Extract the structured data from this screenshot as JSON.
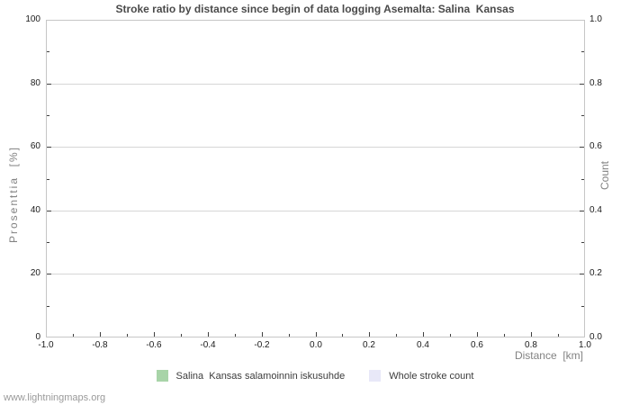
{
  "title": "Stroke ratio by distance since begin of data logging Asemalta: Salina  Kansas",
  "watermark": "www.lightningmaps.org",
  "colors": {
    "background": "#ffffff",
    "plot_border": "#c6c6c6",
    "grid": "#d6d6d6",
    "tick": "#404040",
    "tick_label": "#1a1a1a",
    "axis_title": "#828282",
    "title": "#4a4a4a",
    "legend_text": "#3c3c3c",
    "watermark": "#9a9a9a"
  },
  "chart_data": {
    "type": "bar",
    "title": "Stroke ratio by distance since begin of data logging Asemalta: Salina  Kansas",
    "grid": "horizontal-major-only",
    "legend_position": "bottom-center",
    "x_axis": {
      "label": "Distance  [km]",
      "min": -1.0,
      "max": 1.0,
      "major_step": 0.2,
      "minor_step": 0.1,
      "decimals": 1,
      "tick_labels": [
        "-1.0",
        "-0.8",
        "-0.6",
        "-0.4",
        "-0.2",
        "0.0",
        "0.2",
        "0.4",
        "0.6",
        "0.8",
        "1.0"
      ]
    },
    "y_left_axis": {
      "label": "Prosenttia  [%]",
      "min": 0,
      "max": 100,
      "major_step": 20,
      "minor_step": 10,
      "decimals": 0,
      "tick_labels": [
        "0",
        "20",
        "40",
        "60",
        "80",
        "100"
      ]
    },
    "y_right_axis": {
      "label": "Count",
      "min": 0.0,
      "max": 1.0,
      "major_step": 0.2,
      "minor_step": 0.1,
      "decimals": 1,
      "tick_labels": [
        "0.0",
        "0.2",
        "0.4",
        "0.6",
        "0.8",
        "1.0"
      ]
    },
    "series": [
      {
        "name": "Salina  Kansas salamoinnin iskusuhde",
        "color": "#a8d4a8",
        "values": []
      },
      {
        "name": "Whole stroke count",
        "color": "#e8e8f8",
        "values": []
      }
    ]
  }
}
